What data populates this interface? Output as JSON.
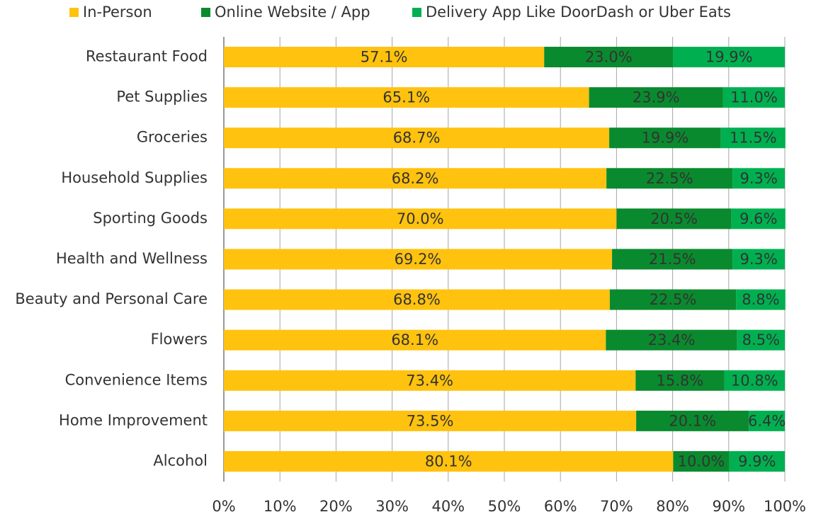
{
  "chart_data": {
    "type": "stacked-barh",
    "categories": [
      "Restaurant Food",
      "Pet Supplies",
      "Groceries",
      "Household Supplies",
      "Sporting Goods",
      "Health and Wellness",
      "Beauty and Personal Care",
      "Flowers",
      "Convenience Items",
      "Home Improvement",
      "Alcohol"
    ],
    "series": [
      {
        "name": "In-Person",
        "color": "#ffc20e",
        "values": [
          57.1,
          65.1,
          68.7,
          68.2,
          70.0,
          69.2,
          68.8,
          68.1,
          73.4,
          73.5,
          80.1
        ],
        "value_labels": [
          "57.1%",
          "65.1%",
          "68.7%",
          "68.2%",
          "70.0%",
          "69.2%",
          "68.8%",
          "68.1%",
          "73.4%",
          "73.5%",
          "80.1%"
        ]
      },
      {
        "name": "Online Website / App",
        "color": "#0a8a2e",
        "values": [
          23.0,
          23.9,
          19.9,
          22.5,
          20.5,
          21.5,
          22.5,
          23.4,
          15.8,
          20.1,
          10.0
        ],
        "value_labels": [
          "23.0%",
          "23.9%",
          "19.9%",
          "22.5%",
          "20.5%",
          "21.5%",
          "22.5%",
          "23.4%",
          "15.8%",
          "20.1%",
          "10.0%"
        ]
      },
      {
        "name": "Delivery App Like DoorDash or Uber Eats",
        "color": "#00b050",
        "values": [
          19.9,
          11.0,
          11.5,
          9.3,
          9.6,
          9.3,
          8.8,
          8.5,
          10.8,
          6.4,
          9.9
        ],
        "value_labels": [
          "19.9%",
          "11.0%",
          "11.5%",
          "9.3%",
          "9.6%",
          "9.3%",
          "8.8%",
          "8.5%",
          "10.8%",
          "6.4%",
          "9.9%"
        ]
      }
    ],
    "xlim": [
      0,
      100
    ],
    "xticks": [
      {
        "value": 0,
        "label": "0%"
      },
      {
        "value": 10,
        "label": "10%"
      },
      {
        "value": 20,
        "label": "20%"
      },
      {
        "value": 30,
        "label": "30%"
      },
      {
        "value": 40,
        "label": "40%"
      },
      {
        "value": 50,
        "label": "50%"
      },
      {
        "value": 60,
        "label": "60%"
      },
      {
        "value": 70,
        "label": "70%"
      },
      {
        "value": 80,
        "label": "80%"
      },
      {
        "value": 90,
        "label": "90%"
      },
      {
        "value": 100,
        "label": "100%"
      }
    ],
    "grid": true,
    "legend": "top"
  }
}
